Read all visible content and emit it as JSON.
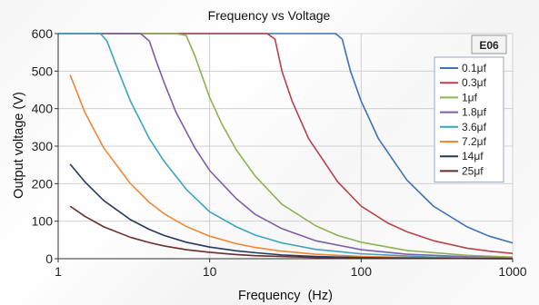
{
  "chart_data": {
    "type": "line",
    "title": "Frequency vs Voltage",
    "xlabel": "Frequency  (Hz)",
    "ylabel": "Output voltage (V)",
    "xscale": "log",
    "xlim": [
      1,
      1000
    ],
    "ylim": [
      0,
      600
    ],
    "x_ticks": [
      "1",
      "10",
      "100",
      "1000"
    ],
    "y_ticks": [
      "0",
      "100",
      "200",
      "300",
      "400",
      "500",
      "600"
    ],
    "grid": true,
    "legend_position": "right",
    "badge": "E06",
    "series": [
      {
        "name": "0.1μf",
        "color": "#3c72b8",
        "points": [
          [
            1,
            600
          ],
          [
            50,
            600
          ],
          [
            68,
            600
          ],
          [
            75,
            585
          ],
          [
            85,
            500
          ],
          [
            100,
            420
          ],
          [
            130,
            320
          ],
          [
            200,
            210
          ],
          [
            300,
            140
          ],
          [
            500,
            85
          ],
          [
            700,
            60
          ],
          [
            1000,
            42
          ]
        ]
      },
      {
        "name": "0.3μf",
        "color": "#b8424b",
        "points": [
          [
            1,
            600
          ],
          [
            20,
            600
          ],
          [
            24,
            600
          ],
          [
            27,
            585
          ],
          [
            30,
            500
          ],
          [
            35,
            420
          ],
          [
            45,
            320
          ],
          [
            70,
            205
          ],
          [
            100,
            140
          ],
          [
            150,
            95
          ],
          [
            200,
            72
          ],
          [
            300,
            48
          ],
          [
            500,
            28
          ],
          [
            700,
            20
          ],
          [
            1000,
            14
          ]
        ]
      },
      {
        "name": "1μf",
        "color": "#8fb153",
        "points": [
          [
            1,
            600
          ],
          [
            6,
            600
          ],
          [
            7,
            595
          ],
          [
            8,
            540
          ],
          [
            10,
            430
          ],
          [
            12,
            360
          ],
          [
            15,
            290
          ],
          [
            20,
            220
          ],
          [
            30,
            145
          ],
          [
            50,
            88
          ],
          [
            70,
            62
          ],
          [
            100,
            44
          ],
          [
            200,
            22
          ],
          [
            500,
            9
          ],
          [
            1000,
            4
          ]
        ]
      },
      {
        "name": "1.8μf",
        "color": "#7b5fa8",
        "points": [
          [
            1,
            600
          ],
          [
            3.5,
            600
          ],
          [
            4,
            580
          ],
          [
            4.5,
            520
          ],
          [
            5,
            470
          ],
          [
            6,
            390
          ],
          [
            8,
            295
          ],
          [
            10,
            235
          ],
          [
            15,
            160
          ],
          [
            20,
            118
          ],
          [
            30,
            80
          ],
          [
            50,
            48
          ],
          [
            100,
            24
          ],
          [
            200,
            12
          ],
          [
            500,
            5
          ],
          [
            1000,
            2
          ]
        ]
      },
      {
        "name": "3.6μf",
        "color": "#3ca3bf",
        "points": [
          [
            1,
            600
          ],
          [
            1.9,
            600
          ],
          [
            2.1,
            580
          ],
          [
            2.5,
            500
          ],
          [
            3,
            420
          ],
          [
            4,
            320
          ],
          [
            5,
            260
          ],
          [
            7,
            185
          ],
          [
            10,
            125
          ],
          [
            15,
            85
          ],
          [
            20,
            63
          ],
          [
            30,
            42
          ],
          [
            50,
            25
          ],
          [
            100,
            13
          ],
          [
            300,
            4
          ],
          [
            1000,
            1
          ]
        ]
      },
      {
        "name": "7.2μf",
        "color": "#ef8838",
        "points": [
          [
            1.2,
            490
          ],
          [
            1.5,
            390
          ],
          [
            2,
            295
          ],
          [
            3,
            200
          ],
          [
            4,
            150
          ],
          [
            5,
            120
          ],
          [
            7,
            86
          ],
          [
            10,
            60
          ],
          [
            15,
            40
          ],
          [
            20,
            30
          ],
          [
            30,
            20
          ],
          [
            50,
            12
          ],
          [
            100,
            6
          ],
          [
            300,
            2
          ],
          [
            1000,
            1
          ]
        ]
      },
      {
        "name": "14μf",
        "color": "#233a5c",
        "points": [
          [
            1.2,
            252
          ],
          [
            1.5,
            205
          ],
          [
            2,
            155
          ],
          [
            3,
            104
          ],
          [
            4,
            78
          ],
          [
            5,
            62
          ],
          [
            7,
            44
          ],
          [
            10,
            31
          ],
          [
            15,
            21
          ],
          [
            20,
            16
          ],
          [
            30,
            10
          ],
          [
            50,
            6
          ],
          [
            100,
            3
          ],
          [
            300,
            1
          ],
          [
            1000,
            0
          ]
        ]
      },
      {
        "name": "25μf",
        "color": "#6b2e2e",
        "points": [
          [
            1.2,
            140
          ],
          [
            1.5,
            113
          ],
          [
            2,
            85
          ],
          [
            3,
            57
          ],
          [
            4,
            43
          ],
          [
            5,
            34
          ],
          [
            7,
            24
          ],
          [
            10,
            17
          ],
          [
            15,
            11
          ],
          [
            20,
            8
          ],
          [
            30,
            6
          ],
          [
            50,
            3
          ],
          [
            100,
            2
          ],
          [
            300,
            1
          ],
          [
            1000,
            0
          ]
        ]
      }
    ]
  }
}
